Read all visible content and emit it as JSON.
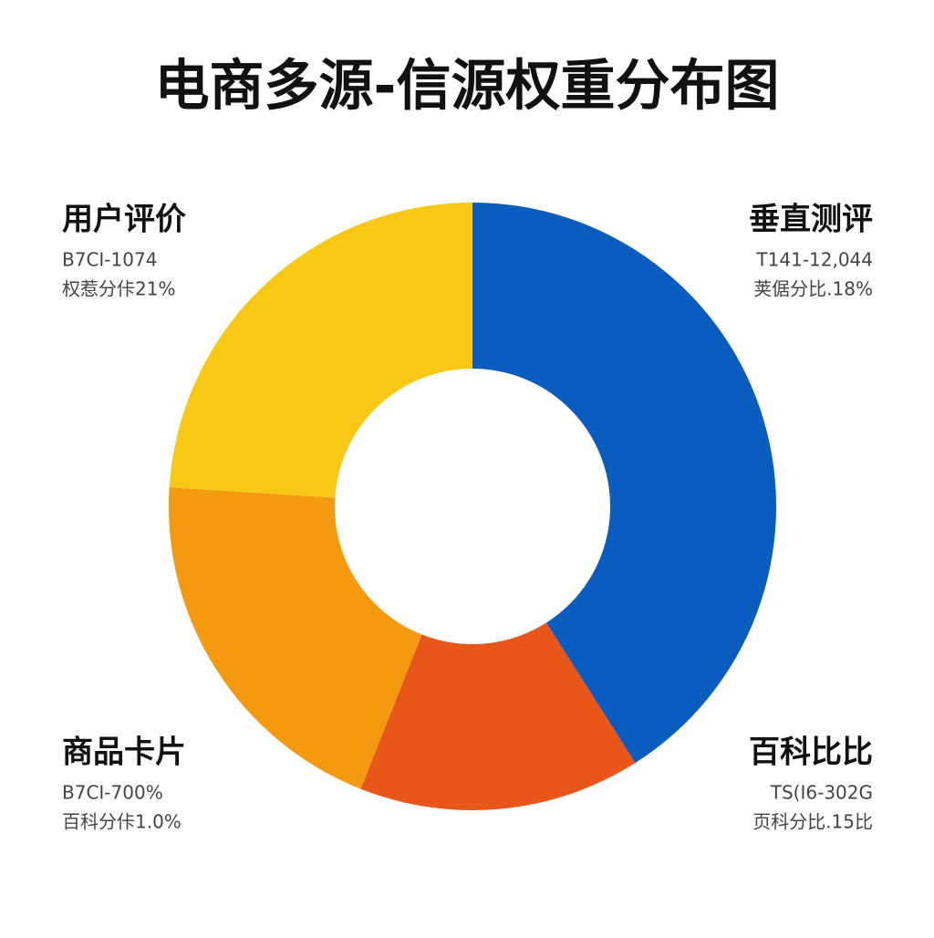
{
  "chart_data": {
    "type": "donut",
    "title": "电商多源-信源权重分布图",
    "categories": [
      "垂直测评",
      "百科比比",
      "商品卡片",
      "用户评价"
    ],
    "values": [
      41,
      15,
      20,
      24
    ],
    "colors": [
      "#0a5cbf",
      "#e8561a",
      "#f59a10",
      "#f9c715"
    ],
    "details": [
      [
        "T141-12,044",
        "荚倨分比.18%"
      ],
      [
        "TS(I6-302G",
        "页科分比.15比"
      ],
      [
        "B7CI-700%",
        "百科分佧1.0%"
      ],
      [
        "B7CI-1074",
        "权惹分佧21%"
      ]
    ]
  }
}
